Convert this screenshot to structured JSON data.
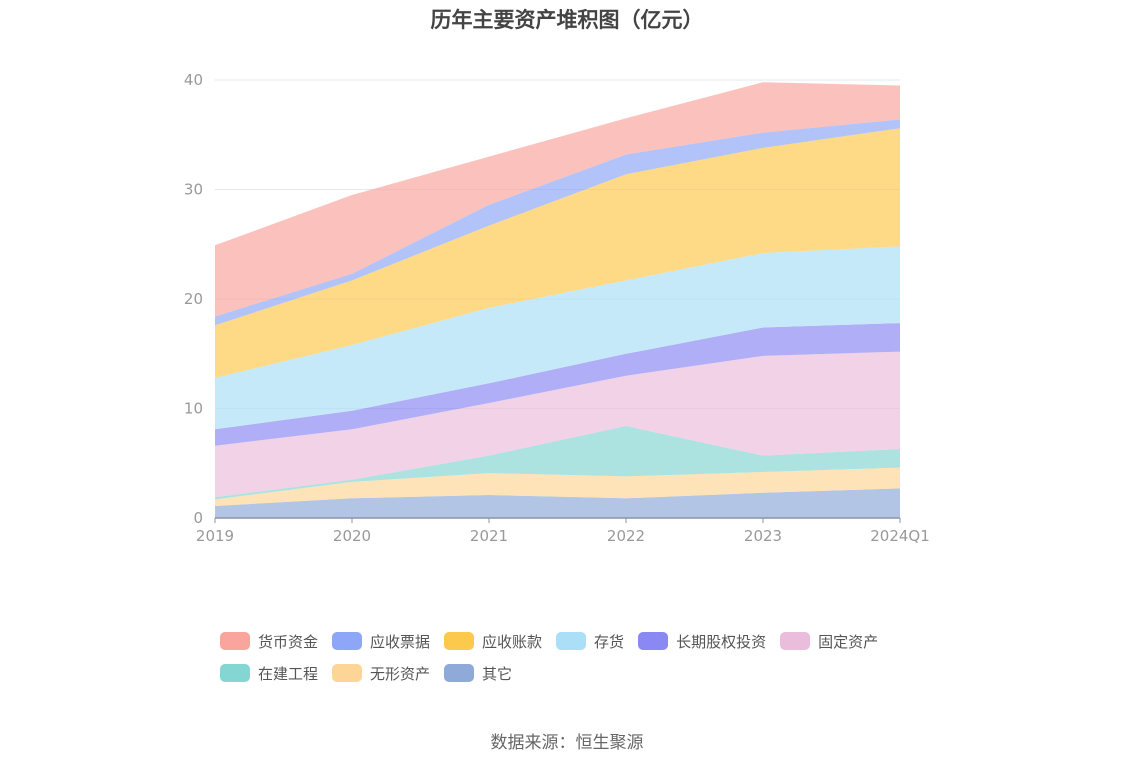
{
  "chart_data": {
    "type": "area",
    "stacked": true,
    "title": "历年主要资产堆积图（亿元）",
    "categories": [
      "2019",
      "2020",
      "2021",
      "2022",
      "2023",
      "2024Q1"
    ],
    "ylim": [
      0,
      40
    ],
    "yticks": [
      0,
      10,
      20,
      30,
      40
    ],
    "grid": true,
    "legend_position": "bottom",
    "series": [
      {
        "name": "其它",
        "color": "#8fa9d8",
        "values": [
          1.1,
          1.8,
          2.1,
          1.8,
          2.3,
          2.7
        ]
      },
      {
        "name": "无形资产",
        "color": "#fdd596",
        "values": [
          0.6,
          1.5,
          2.0,
          2.0,
          1.9,
          1.9
        ]
      },
      {
        "name": "在建工程",
        "color": "#84d6d2",
        "values": [
          0.2,
          0.2,
          1.6,
          4.6,
          1.5,
          1.7
        ]
      },
      {
        "name": "固定资产",
        "color": "#ebbddc",
        "values": [
          4.7,
          4.6,
          4.8,
          4.6,
          9.1,
          8.9
        ]
      },
      {
        "name": "长期股权投资",
        "color": "#8a88f2",
        "values": [
          1.5,
          1.7,
          1.8,
          2.0,
          2.6,
          2.6
        ]
      },
      {
        "name": "存货",
        "color": "#abdff8",
        "values": [
          4.7,
          6.0,
          6.9,
          6.7,
          6.8,
          7.0
        ]
      },
      {
        "name": "应收账款",
        "color": "#fdc94c",
        "values": [
          4.8,
          5.9,
          7.5,
          9.7,
          9.6,
          10.8
        ]
      },
      {
        "name": "应收票据",
        "color": "#8ea6f8",
        "values": [
          0.8,
          0.6,
          1.9,
          1.8,
          1.4,
          0.8
        ]
      },
      {
        "name": "货币资金",
        "color": "#f9a59d",
        "values": [
          6.5,
          7.2,
          4.4,
          3.3,
          4.6,
          3.1
        ]
      }
    ],
    "legend_order": [
      "货币资金",
      "应收票据",
      "应收账款",
      "存货",
      "长期股权投资",
      "固定资产",
      "在建工程",
      "无形资产",
      "其它"
    ]
  },
  "source": "数据来源：恒生聚源"
}
